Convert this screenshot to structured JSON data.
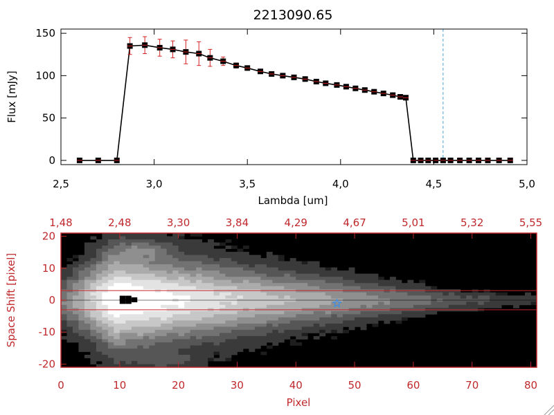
{
  "chart_data": [
    {
      "type": "line",
      "title": "2213090.65",
      "xlabel": "Lambda [um]",
      "ylabel": "Flux [mJy]",
      "xlim": [
        2.5,
        5.0
      ],
      "ylim": [
        -5,
        155
      ],
      "x_ticks": [
        "2.5",
        "3.0",
        "3.5",
        "4.0",
        "4.5",
        "5.0"
      ],
      "y_ticks": [
        "0",
        "50",
        "100",
        "150"
      ],
      "cutoff_line_x": 4.55,
      "series": [
        {
          "x": [
            2.6,
            2.7,
            2.8,
            2.87,
            2.95,
            3.03,
            3.1,
            3.17,
            3.24,
            3.3,
            3.37,
            3.44,
            3.5,
            3.57,
            3.63,
            3.69,
            3.75,
            3.81,
            3.87,
            3.92,
            3.98,
            4.03,
            4.08,
            4.13,
            4.18,
            4.23,
            4.28,
            4.32,
            4.35,
            4.39,
            4.43,
            4.47,
            4.51,
            4.55,
            4.59,
            4.64,
            4.69,
            4.74,
            4.79,
            4.85,
            4.91
          ],
          "y": [
            0,
            0,
            0,
            135,
            136,
            133,
            131,
            128,
            126,
            121,
            117,
            112,
            109,
            105,
            102,
            100,
            98,
            96,
            93,
            91,
            89,
            87,
            85,
            83,
            81,
            79,
            77,
            75,
            74,
            0,
            0,
            0,
            0,
            0,
            0,
            0,
            0,
            0,
            0,
            0,
            0
          ],
          "err": [
            0,
            0,
            0,
            10,
            10,
            10,
            10,
            14,
            14,
            10,
            5,
            3,
            2,
            2,
            2,
            2,
            2,
            2,
            2,
            2,
            2,
            2,
            2,
            2,
            2,
            2,
            2,
            2,
            2,
            0,
            0,
            0,
            0,
            0,
            0,
            0,
            0,
            0,
            0,
            0,
            0
          ]
        }
      ]
    },
    {
      "type": "heatmap",
      "xlabel": "Pixel",
      "ylabel": "Space Shift [pixel]",
      "xlim": [
        0,
        81
      ],
      "ylim": [
        -21,
        21
      ],
      "x_ticks": [
        "0",
        "10",
        "20",
        "30",
        "40",
        "50",
        "60",
        "70",
        "80"
      ],
      "y_ticks": [
        "-20",
        "-10",
        "0",
        "10",
        "20"
      ],
      "top_ticks": [
        "1.48",
        "2.48",
        "3.30",
        "3.84",
        "4.29",
        "4.67",
        "5.01",
        "5.32",
        "5.55"
      ],
      "extraction_window": [
        -3,
        3
      ],
      "trace_row": 0,
      "source_peak_x": 11,
      "marker_x": 47,
      "marker_y": -1
    }
  ],
  "colors": {
    "error_bar": "#d42020",
    "marker": "#000000",
    "cutoff_line": "#4aa3d8",
    "bottom_axis": "#c0282c",
    "star": "#3a8ee6"
  }
}
